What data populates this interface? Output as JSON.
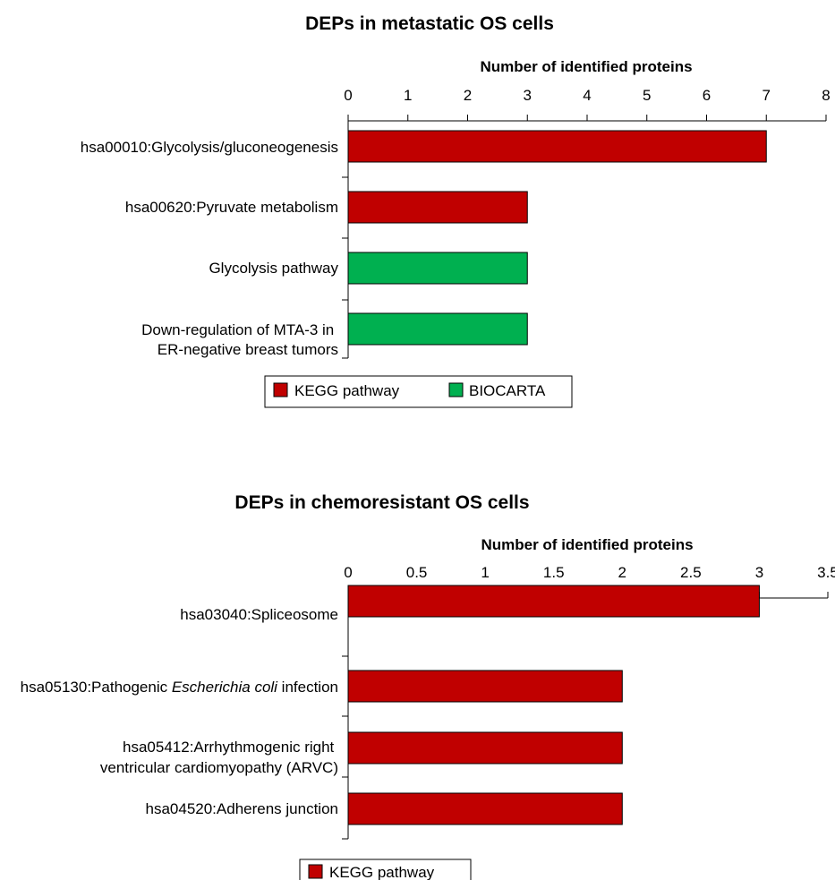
{
  "chart_data": [
    {
      "type": "bar",
      "orientation": "horizontal",
      "title": "DEPs in metastatic OS cells",
      "xlabel": "Number of identified proteins",
      "xlabel_position": "top",
      "xlim": [
        0,
        8
      ],
      "ticks": [
        "0",
        "1",
        "2",
        "3",
        "4",
        "5",
        "6",
        "7",
        "8"
      ],
      "tick_values": [
        0,
        1,
        2,
        3,
        4,
        5,
        6,
        7,
        8
      ],
      "categories": [
        [
          "hsa00010:Glycolysis/gluconeogenesis"
        ],
        [
          "hsa00620:Pyruvate metabolism"
        ],
        [
          "Glycolysis pathway"
        ],
        [
          "Down-regulation of MTA-3 in",
          "ER-negative breast tumors"
        ]
      ],
      "values": [
        7,
        3,
        3,
        3
      ],
      "bar_series": [
        "KEGG pathway",
        "KEGG pathway",
        "BIOCARTA",
        "BIOCARTA"
      ],
      "legend": [
        {
          "name": "KEGG pathway",
          "color": "#c00000"
        },
        {
          "name": "BIOCARTA",
          "color": "#00b050"
        }
      ],
      "legend_position": "bottom",
      "grid": false
    },
    {
      "type": "bar",
      "orientation": "horizontal",
      "title": "DEPs in chemoresistant OS cells",
      "xlabel": "Number of identified proteins",
      "xlabel_position": "top",
      "xlim": [
        0,
        3.5
      ],
      "ticks": [
        "0",
        "0.5",
        "1",
        "1.5",
        "2",
        "2.5",
        "3",
        "3.5"
      ],
      "tick_values": [
        0,
        0.5,
        1,
        1.5,
        2,
        2.5,
        3,
        3.5
      ],
      "categories": [
        [
          "hsa03040:Spliceosome"
        ],
        [
          "hsa05130:Pathogenic ",
          "Escherichia coli",
          " infection"
        ],
        [
          "hsa05412:Arrhythmogenic right",
          "ventricular cardiomyopathy (ARVC)"
        ],
        [
          "hsa04520:Adherens junction"
        ]
      ],
      "values": [
        3,
        2,
        2,
        2
      ],
      "bar_series": [
        "KEGG pathway",
        "KEGG pathway",
        "KEGG pathway",
        "KEGG pathway"
      ],
      "legend": [
        {
          "name": "KEGG pathway",
          "color": "#c00000"
        }
      ],
      "legend_position": "bottom",
      "grid": false
    }
  ]
}
